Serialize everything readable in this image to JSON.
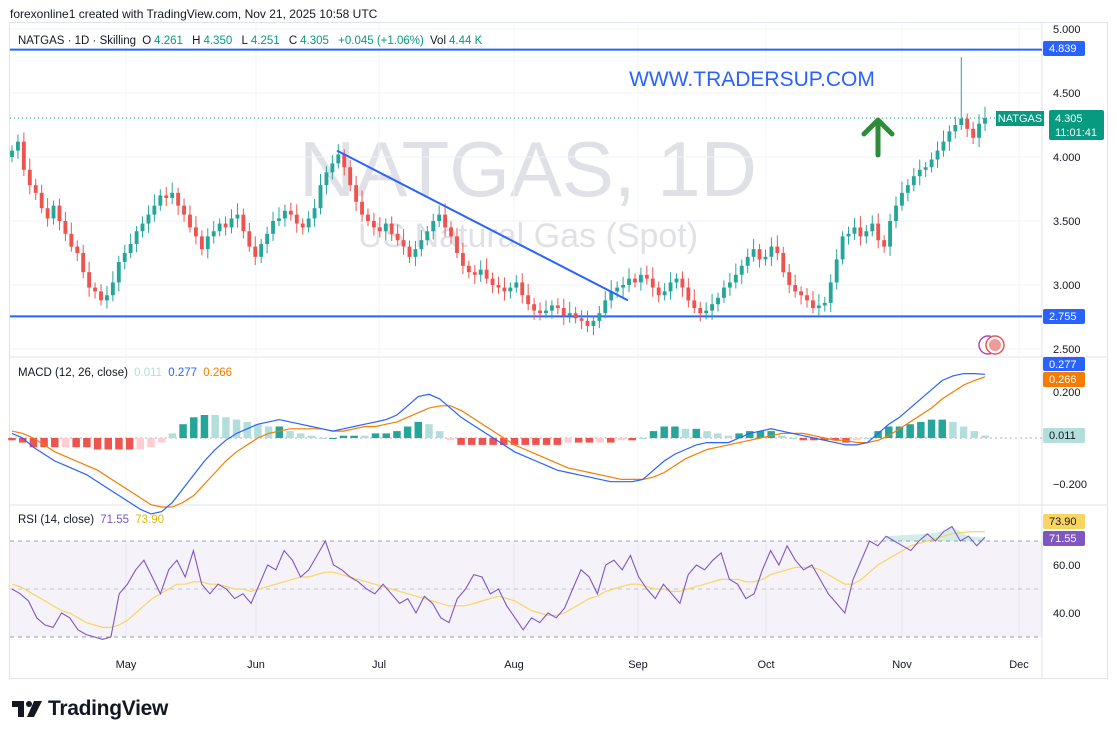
{
  "header": {
    "credit": "forexonline1 created with TradingView.com, Nov 21, 2025 10:58 UTC"
  },
  "symbol_legend": {
    "name": "NATGAS · 1D · Skilling",
    "o_label": "O",
    "o": "4.261",
    "h_label": "H",
    "h": "4.350",
    "l_label": "L",
    "l": "4.251",
    "c_label": "C",
    "c": "4.305",
    "change": "+0.045 (+1.06%)",
    "vol_label": "Vol",
    "vol": "4.44 K"
  },
  "watermark": {
    "symbol": "NATGAS, 1D",
    "description": "US Natural Gas (Spot)"
  },
  "annotation_url": "WWW.TRADERSUP.COM",
  "price_tag": {
    "symbol": "NATGAS",
    "price": "4.305",
    "countdown": "11:01:41"
  },
  "macd_legend": {
    "title": "MACD (12, 26, close)",
    "hist": "0.011",
    "macd": "0.277",
    "signal": "0.266"
  },
  "rsi_legend": {
    "title": "RSI (14, close)",
    "rsi": "71.55",
    "ma": "73.90"
  },
  "footer": {
    "brand": "TradingView"
  },
  "colors": {
    "up": "#26a69a",
    "down": "#ef5350",
    "line": "#2962ff",
    "signal": "#f57c00",
    "rsi": "#7e57c2",
    "rsi_ma": "#f9d55f",
    "arrow": "#2e8b3a"
  },
  "chart_data": [
    {
      "type": "candlestick",
      "title": "NATGAS, 1D",
      "x_labels": [
        "May",
        "Jun",
        "Jul",
        "Aug",
        "Sep",
        "Oct",
        "Nov",
        "Dec"
      ],
      "y_ticks": [
        "5.000",
        "4.500",
        "4.000",
        "3.500",
        "3.000",
        "2.500"
      ],
      "ylim": [
        2.5,
        5.0
      ],
      "current_price": 4.305,
      "levels": [
        {
          "value": 4.839,
          "label": "4.839"
        },
        {
          "value": 2.755,
          "label": "2.755"
        }
      ],
      "trendline": {
        "from": {
          "date": "2025-06-19",
          "value": 4.05
        },
        "to": {
          "date": "2025-08-29",
          "value": 2.88
        }
      },
      "closes": [
        4.05,
        4.12,
        3.9,
        3.78,
        3.72,
        3.6,
        3.52,
        3.62,
        3.5,
        3.4,
        3.3,
        3.25,
        3.1,
        2.98,
        2.95,
        2.88,
        2.92,
        3.02,
        3.18,
        3.25,
        3.32,
        3.42,
        3.48,
        3.55,
        3.62,
        3.7,
        3.68,
        3.72,
        3.62,
        3.55,
        3.45,
        3.38,
        3.28,
        3.38,
        3.42,
        3.48,
        3.45,
        3.52,
        3.55,
        3.42,
        3.3,
        3.22,
        3.32,
        3.4,
        3.5,
        3.52,
        3.58,
        3.55,
        3.48,
        3.45,
        3.52,
        3.6,
        3.78,
        3.88,
        3.95,
        4.02,
        3.92,
        3.78,
        3.65,
        3.55,
        3.5,
        3.45,
        3.42,
        3.48,
        3.4,
        3.35,
        3.3,
        3.22,
        3.28,
        3.35,
        3.42,
        3.5,
        3.55,
        3.45,
        3.38,
        3.25,
        3.15,
        3.1,
        3.08,
        3.12,
        3.05,
        3.0,
        2.98,
        2.95,
        2.98,
        3.02,
        2.92,
        2.85,
        2.8,
        2.78,
        2.8,
        2.84,
        2.82,
        2.76,
        2.78,
        2.74,
        2.72,
        2.68,
        2.72,
        2.78,
        2.88,
        2.95,
        2.98,
        3.0,
        3.05,
        3.02,
        3.08,
        3.05,
        2.98,
        2.92,
        2.95,
        3.02,
        3.05,
        2.98,
        2.88,
        2.82,
        2.78,
        2.8,
        2.85,
        2.9,
        2.98,
        3.02,
        3.08,
        3.15,
        3.22,
        3.28,
        3.2,
        3.22,
        3.3,
        3.25,
        3.1,
        3.0,
        2.95,
        2.92,
        2.88,
        2.82,
        2.84,
        2.86,
        3.02,
        3.2,
        3.38,
        3.4,
        3.45,
        3.38,
        3.42,
        3.48,
        3.35,
        3.3,
        3.5,
        3.62,
        3.72,
        3.78,
        3.85,
        3.9,
        3.92,
        3.98,
        4.05,
        4.12,
        4.2,
        4.25,
        4.3,
        4.22,
        4.15,
        4.26,
        4.305
      ],
      "macd": [
        0.02,
        0.0,
        -0.04,
        -0.07,
        -0.1,
        -0.12,
        -0.14,
        -0.16,
        -0.19,
        -0.22,
        -0.25,
        -0.28,
        -0.31,
        -0.33,
        -0.32,
        -0.28,
        -0.22,
        -0.16,
        -0.1,
        -0.05,
        -0.01,
        0.02,
        0.04,
        0.06,
        0.07,
        0.08,
        0.07,
        0.06,
        0.05,
        0.04,
        0.03,
        0.04,
        0.05,
        0.06,
        0.07,
        0.08,
        0.1,
        0.14,
        0.18,
        0.19,
        0.17,
        0.13,
        0.09,
        0.06,
        0.03,
        0.0,
        -0.03,
        -0.06,
        -0.08,
        -0.1,
        -0.12,
        -0.14,
        -0.15,
        -0.16,
        -0.17,
        -0.18,
        -0.19,
        -0.19,
        -0.19,
        -0.18,
        -0.14,
        -0.1,
        -0.07,
        -0.05,
        -0.03,
        -0.02,
        -0.02,
        -0.02,
        0.0,
        0.02,
        0.03,
        0.04,
        0.03,
        0.02,
        0.01,
        0.0,
        -0.01,
        -0.02,
        -0.03,
        -0.03,
        -0.02,
        0.02,
        0.06,
        0.09,
        0.13,
        0.17,
        0.21,
        0.25,
        0.27,
        0.28,
        0.28,
        0.277
      ],
      "signal": [
        0.03,
        0.02,
        0.0,
        -0.03,
        -0.06,
        -0.08,
        -0.1,
        -0.12,
        -0.14,
        -0.17,
        -0.2,
        -0.23,
        -0.26,
        -0.29,
        -0.3,
        -0.3,
        -0.28,
        -0.25,
        -0.2,
        -0.15,
        -0.1,
        -0.06,
        -0.03,
        0.0,
        0.02,
        0.03,
        0.04,
        0.04,
        0.04,
        0.04,
        0.03,
        0.03,
        0.04,
        0.05,
        0.05,
        0.06,
        0.07,
        0.09,
        0.11,
        0.13,
        0.14,
        0.14,
        0.12,
        0.09,
        0.06,
        0.03,
        0.0,
        -0.03,
        -0.05,
        -0.07,
        -0.09,
        -0.11,
        -0.13,
        -0.14,
        -0.15,
        -0.16,
        -0.17,
        -0.18,
        -0.18,
        -0.18,
        -0.17,
        -0.15,
        -0.12,
        -0.09,
        -0.07,
        -0.05,
        -0.04,
        -0.03,
        -0.02,
        -0.01,
        0.0,
        0.01,
        0.02,
        0.02,
        0.02,
        0.01,
        0.0,
        -0.01,
        -0.01,
        -0.02,
        -0.02,
        -0.01,
        0.01,
        0.04,
        0.07,
        0.1,
        0.13,
        0.17,
        0.2,
        0.23,
        0.25,
        0.266
      ],
      "macd_ticks": [
        "0.200",
        "−0.200"
      ],
      "rsi": [
        50,
        48,
        45,
        38,
        35,
        34,
        40,
        38,
        33,
        31,
        30,
        29,
        30,
        48,
        52,
        58,
        62,
        55,
        48,
        58,
        62,
        55,
        66,
        52,
        48,
        52,
        50,
        46,
        48,
        44,
        52,
        60,
        58,
        66,
        62,
        55,
        58,
        64,
        70,
        60,
        58,
        55,
        53,
        50,
        48,
        52,
        48,
        44,
        46,
        40,
        47,
        44,
        38,
        36,
        46,
        50,
        56,
        55,
        48,
        50,
        43,
        38,
        33,
        38,
        36,
        40,
        38,
        42,
        50,
        58,
        55,
        48,
        60,
        62,
        58,
        64,
        55,
        50,
        46,
        52,
        48,
        44,
        56,
        60,
        58,
        62,
        65,
        54,
        52,
        46,
        48,
        58,
        66,
        60,
        68,
        62,
        58,
        60,
        54,
        48,
        44,
        40,
        54,
        62,
        70,
        68,
        72,
        70,
        68,
        66,
        70,
        73,
        70,
        74,
        76,
        70,
        72,
        68,
        71.55
      ],
      "rsi_ma": [
        52,
        51,
        49,
        47,
        45,
        43,
        41,
        40,
        38,
        36,
        35,
        34,
        34,
        35,
        37,
        40,
        43,
        46,
        48,
        50,
        52,
        52,
        53,
        53,
        52,
        52,
        51,
        50,
        50,
        49,
        50,
        51,
        52,
        53,
        54,
        55,
        55,
        56,
        57,
        57,
        56,
        55,
        54,
        53,
        52,
        51,
        50,
        49,
        48,
        47,
        46,
        45,
        44,
        43,
        43,
        43,
        44,
        45,
        46,
        47,
        46,
        45,
        43,
        41,
        40,
        39,
        39,
        40,
        42,
        44,
        46,
        47,
        49,
        50,
        51,
        52,
        52,
        51,
        50,
        50,
        49,
        49,
        50,
        51,
        52,
        53,
        54,
        54,
        54,
        53,
        53,
        54,
        56,
        57,
        58,
        59,
        59,
        59,
        58,
        56,
        54,
        52,
        52,
        54,
        57,
        60,
        62,
        64,
        66,
        68,
        69,
        70,
        71,
        72,
        73,
        73.5,
        73.8,
        73.9,
        73.9
      ],
      "rsi_ticks": [
        "60.00",
        "40.00"
      ]
    }
  ],
  "axis_tags": {
    "level_top": "4.839",
    "level_bottom": "2.755",
    "macd_val": "0.277",
    "signal_val": "0.266",
    "hist_val": "0.011",
    "rsi_ma_val": "73.90",
    "rsi_val": "71.55"
  }
}
